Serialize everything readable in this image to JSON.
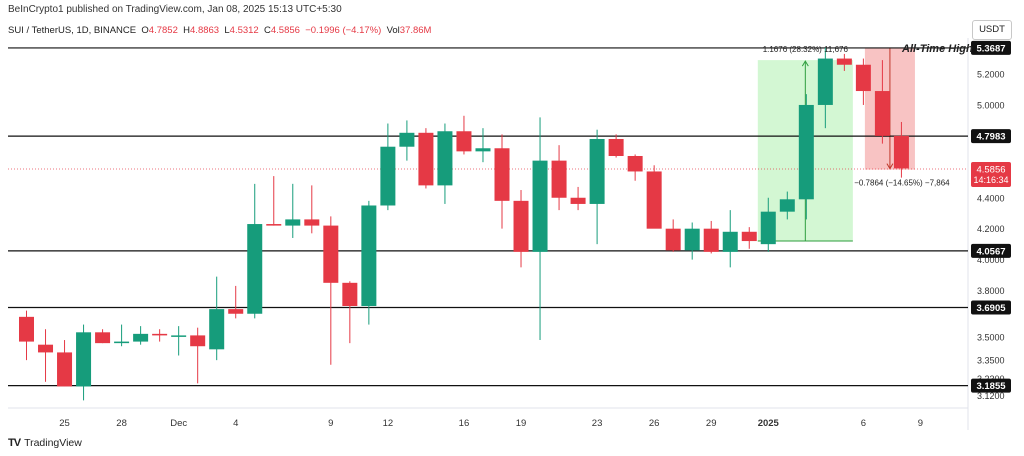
{
  "publisher_line": "BeInCrypto1 published on TradingView.com, Jan 08, 2025 15:13 UTC+5:30",
  "header": {
    "symbol": "SUI / TetherUS, 1D, BINANCE",
    "open_label": "O",
    "open": "4.7852",
    "high_label": "H",
    "high": "4.8863",
    "low_label": "L",
    "low": "4.5312",
    "close_label": "C",
    "close": "4.5856",
    "change": "−0.1996 (−4.17%)",
    "vol_label": "Vol",
    "vol": "37.86M"
  },
  "unit_button": "USDT",
  "brand": {
    "logo": "TV",
    "name": "TradingView"
  },
  "colors": {
    "up": "#169c7b",
    "down": "#e53945",
    "level_line": "#111111",
    "up_range": "#c8f5c8",
    "down_range": "#f7b8b8"
  },
  "chart_data": {
    "type": "candlestick",
    "title": "SUI / TetherUS, 1D, BINANCE",
    "price_axis": {
      "min": 3.06,
      "max": 5.42,
      "ticks": [
        5.2,
        5.0,
        4.4,
        4.2,
        4.0,
        3.8,
        3.5,
        3.35,
        3.23,
        3.12
      ],
      "tick_labels": [
        "5.2000",
        "5.0000",
        "4.4000",
        "4.2000",
        "4.0000",
        "3.8000",
        "3.5000",
        "3.3500",
        "3.2300",
        "3.1200"
      ]
    },
    "x_tick_labels": [
      {
        "i": 2,
        "label": "25"
      },
      {
        "i": 5,
        "label": "28"
      },
      {
        "i": 8,
        "label": "Dec"
      },
      {
        "i": 11,
        "label": "4"
      },
      {
        "i": 16,
        "label": "9"
      },
      {
        "i": 19,
        "label": "12"
      },
      {
        "i": 23,
        "label": "16"
      },
      {
        "i": 26,
        "label": "19"
      },
      {
        "i": 30,
        "label": "23"
      },
      {
        "i": 33,
        "label": "26"
      },
      {
        "i": 36,
        "label": "29"
      },
      {
        "i": 39,
        "label": "2025"
      },
      {
        "i": 44,
        "label": "6"
      },
      {
        "i": 47,
        "label": "9"
      }
    ],
    "candles": [
      {
        "o": 3.63,
        "h": 3.67,
        "l": 3.35,
        "c": 3.47
      },
      {
        "o": 3.45,
        "h": 3.55,
        "l": 3.21,
        "c": 3.4
      },
      {
        "o": 3.4,
        "h": 3.48,
        "l": 3.18,
        "c": 3.18
      },
      {
        "o": 3.18,
        "h": 3.58,
        "l": 3.09,
        "c": 3.53
      },
      {
        "o": 3.53,
        "h": 3.55,
        "l": 3.46,
        "c": 3.46
      },
      {
        "o": 3.46,
        "h": 3.58,
        "l": 3.44,
        "c": 3.47
      },
      {
        "o": 3.47,
        "h": 3.57,
        "l": 3.45,
        "c": 3.52
      },
      {
        "o": 3.52,
        "h": 3.55,
        "l": 3.47,
        "c": 3.51
      },
      {
        "o": 3.51,
        "h": 3.57,
        "l": 3.38,
        "c": 3.51
      },
      {
        "o": 3.51,
        "h": 3.56,
        "l": 3.2,
        "c": 3.44
      },
      {
        "o": 3.42,
        "h": 3.89,
        "l": 3.35,
        "c": 3.68
      },
      {
        "o": 3.68,
        "h": 3.83,
        "l": 3.62,
        "c": 3.65
      },
      {
        "o": 3.65,
        "h": 4.49,
        "l": 3.62,
        "c": 4.23
      },
      {
        "o": 4.23,
        "h": 4.54,
        "l": 4.22,
        "c": 4.22
      },
      {
        "o": 4.22,
        "h": 4.49,
        "l": 4.14,
        "c": 4.26
      },
      {
        "o": 4.26,
        "h": 4.48,
        "l": 4.17,
        "c": 4.22
      },
      {
        "o": 4.22,
        "h": 4.28,
        "l": 3.32,
        "c": 3.85
      },
      {
        "o": 3.85,
        "h": 3.86,
        "l": 3.46,
        "c": 3.7
      },
      {
        "o": 3.7,
        "h": 4.38,
        "l": 3.58,
        "c": 4.35
      },
      {
        "o": 4.35,
        "h": 4.88,
        "l": 4.32,
        "c": 4.73
      },
      {
        "o": 4.73,
        "h": 4.9,
        "l": 4.64,
        "c": 4.82
      },
      {
        "o": 4.82,
        "h": 4.85,
        "l": 4.46,
        "c": 4.48
      },
      {
        "o": 4.48,
        "h": 4.88,
        "l": 4.36,
        "c": 4.83
      },
      {
        "o": 4.83,
        "h": 4.93,
        "l": 4.68,
        "c": 4.7
      },
      {
        "o": 4.7,
        "h": 4.85,
        "l": 4.63,
        "c": 4.72
      },
      {
        "o": 4.72,
        "h": 4.81,
        "l": 4.2,
        "c": 4.38
      },
      {
        "o": 4.38,
        "h": 4.45,
        "l": 3.95,
        "c": 4.05
      },
      {
        "o": 4.05,
        "h": 4.92,
        "l": 3.48,
        "c": 4.64
      },
      {
        "o": 4.64,
        "h": 4.74,
        "l": 4.32,
        "c": 4.4
      },
      {
        "o": 4.4,
        "h": 4.47,
        "l": 4.32,
        "c": 4.36
      },
      {
        "o": 4.36,
        "h": 4.84,
        "l": 4.1,
        "c": 4.78
      },
      {
        "o": 4.78,
        "h": 4.81,
        "l": 4.66,
        "c": 4.67
      },
      {
        "o": 4.67,
        "h": 4.68,
        "l": 4.51,
        "c": 4.57
      },
      {
        "o": 4.57,
        "h": 4.61,
        "l": 4.21,
        "c": 4.2
      },
      {
        "o": 4.2,
        "h": 4.26,
        "l": 4.05,
        "c": 4.06
      },
      {
        "o": 4.06,
        "h": 4.24,
        "l": 4.0,
        "c": 4.2
      },
      {
        "o": 4.2,
        "h": 4.25,
        "l": 4.04,
        "c": 4.05
      },
      {
        "o": 4.05,
        "h": 4.32,
        "l": 3.95,
        "c": 4.18
      },
      {
        "o": 4.18,
        "h": 4.21,
        "l": 4.07,
        "c": 4.12
      },
      {
        "o": 4.1,
        "h": 4.4,
        "l": 4.05,
        "c": 4.31
      },
      {
        "o": 4.31,
        "h": 4.44,
        "l": 4.26,
        "c": 4.39
      },
      {
        "o": 4.39,
        "h": 5.07,
        "l": 4.26,
        "c": 5.0
      },
      {
        "o": 5.0,
        "h": 5.37,
        "l": 4.85,
        "c": 5.3
      },
      {
        "o": 5.3,
        "h": 5.33,
        "l": 5.22,
        "c": 5.26
      },
      {
        "o": 5.26,
        "h": 5.3,
        "l": 5.0,
        "c": 5.09
      },
      {
        "o": 5.09,
        "h": 5.29,
        "l": 4.75,
        "c": 4.8
      },
      {
        "o": 4.8,
        "h": 4.89,
        "l": 4.53,
        "c": 4.59
      }
    ],
    "levels": [
      {
        "value": 5.3687,
        "label": "5.3687"
      },
      {
        "value": 4.7983,
        "label": "4.7983"
      },
      {
        "value": 4.0567,
        "label": "4.0567"
      },
      {
        "value": 3.6905,
        "label": "3.6905"
      },
      {
        "value": 3.1855,
        "label": "3.1855"
      }
    ],
    "current_price": {
      "value": 4.5856,
      "label": "4.5856",
      "countdown": "14:16:34"
    },
    "annotations": {
      "ath_text": "All-Time High",
      "up_range_label": "1.1676 (28.32%) 11,676",
      "up_range_from": 4.12,
      "up_range_to": 5.29,
      "up_range_start": 39,
      "up_range_end": 43,
      "down_range_label": "−0.7864 (−14.65%) −7,864",
      "down_range_from": 5.369,
      "down_range_to": 4.582,
      "down_range_start": 45,
      "down_range_end": 47
    }
  }
}
